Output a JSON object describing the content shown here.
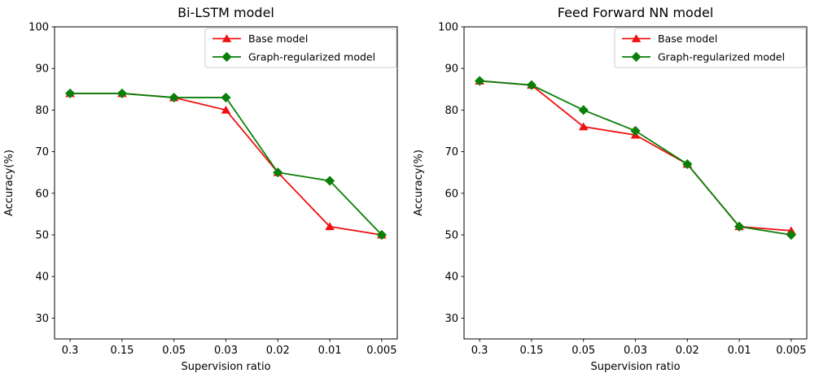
{
  "figure": {
    "background": "#ffffff",
    "text_color": "#000000",
    "axis_color": "#000000",
    "legend_border_color": "#cccccc",
    "legend_background": "#ffffff"
  },
  "chart_data": [
    {
      "type": "line",
      "title": "Bi-LSTM model",
      "xlabel": "Supervision ratio",
      "ylabel": "Accuracy(%)",
      "categories": [
        "0.3",
        "0.15",
        "0.05",
        "0.03",
        "0.02",
        "0.01",
        "0.005"
      ],
      "yticks": [
        100,
        90,
        80,
        70,
        60,
        50,
        40,
        30
      ],
      "ylim": [
        25,
        100
      ],
      "grid": false,
      "legend_position": "upper right",
      "series": [
        {
          "name": "Base model",
          "color": "#f01010",
          "marker": "triangle",
          "values": [
            84,
            84,
            83,
            80,
            65,
            52,
            50
          ]
        },
        {
          "name": "Graph-regularized model",
          "color": "#0a800a",
          "marker": "diamond",
          "values": [
            84,
            84,
            83,
            83,
            65,
            63,
            50
          ]
        }
      ]
    },
    {
      "type": "line",
      "title": "Feed Forward NN model",
      "xlabel": "Supervision ratio",
      "ylabel": "Accuracy(%)",
      "categories": [
        "0.3",
        "0.15",
        "0.05",
        "0.03",
        "0.02",
        "0.01",
        "0.005"
      ],
      "yticks": [
        100,
        90,
        80,
        70,
        60,
        50,
        40,
        30
      ],
      "ylim": [
        25,
        100
      ],
      "grid": false,
      "legend_position": "upper right",
      "series": [
        {
          "name": "Base model",
          "color": "#f01010",
          "marker": "triangle",
          "values": [
            87,
            86,
            76,
            74,
            67,
            52,
            51
          ]
        },
        {
          "name": "Graph-regularized model",
          "color": "#0a800a",
          "marker": "diamond",
          "values": [
            87,
            86,
            80,
            75,
            67,
            52,
            50
          ]
        }
      ]
    }
  ]
}
